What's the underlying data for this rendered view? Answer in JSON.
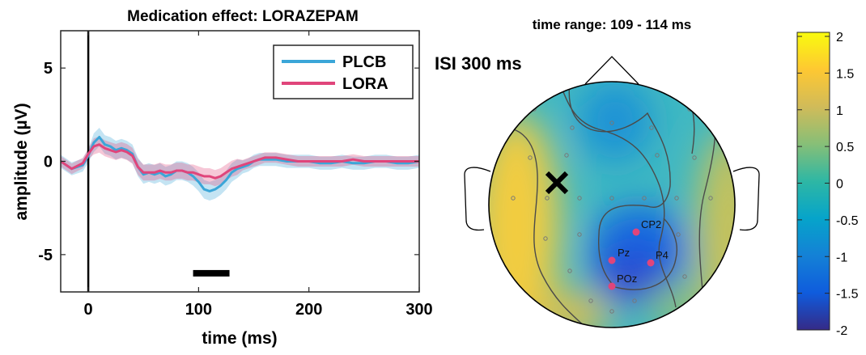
{
  "chart_data": [
    {
      "type": "line",
      "title": "Medication effect: LORAZEPAM",
      "xlabel": "time (ms)",
      "ylabel": "amplitude (µV)",
      "xlim": [
        -25,
        300
      ],
      "ylim": [
        -7,
        7
      ],
      "xticks": [
        0,
        100,
        200,
        300
      ],
      "yticks": [
        5,
        0,
        -5
      ],
      "xtick_labels": [
        "0",
        "100",
        "200",
        "300"
      ],
      "ytick_labels": [
        "5",
        "0",
        "-5"
      ],
      "legend_position": "top-right",
      "significance_bar": [
        95,
        128
      ],
      "x": [
        -25,
        -15,
        -5,
        0,
        5,
        10,
        15,
        20,
        25,
        30,
        35,
        40,
        45,
        50,
        55,
        60,
        65,
        70,
        75,
        80,
        85,
        90,
        95,
        100,
        105,
        110,
        115,
        120,
        125,
        130,
        135,
        140,
        145,
        150,
        155,
        160,
        170,
        180,
        190,
        200,
        210,
        220,
        230,
        240,
        250,
        260,
        270,
        280,
        290,
        300
      ],
      "series": [
        {
          "name": "PLCB",
          "color": "#3ba6d8",
          "values": [
            0.0,
            -0.4,
            -0.2,
            0.3,
            1.0,
            1.3,
            0.9,
            0.8,
            0.6,
            0.7,
            0.6,
            0.4,
            -0.3,
            -0.7,
            -0.6,
            -0.7,
            -0.6,
            -0.8,
            -0.7,
            -0.5,
            -0.5,
            -0.6,
            -0.8,
            -1.1,
            -1.5,
            -1.6,
            -1.5,
            -1.3,
            -1.0,
            -0.6,
            -0.4,
            -0.3,
            -0.2,
            0.0,
            0.1,
            0.1,
            0.1,
            0.0,
            0.0,
            0.0,
            -0.1,
            -0.1,
            0.0,
            -0.1,
            -0.1,
            0.0,
            0.0,
            -0.1,
            -0.1,
            0.0
          ]
        },
        {
          "name": "LORA",
          "color": "#e0457b",
          "values": [
            0.0,
            -0.4,
            -0.1,
            0.4,
            0.8,
            0.9,
            0.7,
            0.6,
            0.5,
            0.6,
            0.5,
            0.3,
            -0.3,
            -0.6,
            -0.6,
            -0.6,
            -0.5,
            -0.6,
            -0.6,
            -0.5,
            -0.5,
            -0.6,
            -0.6,
            -0.7,
            -0.8,
            -0.8,
            -0.9,
            -0.8,
            -0.6,
            -0.4,
            -0.3,
            -0.2,
            -0.1,
            0.0,
            0.1,
            0.2,
            0.2,
            0.1,
            0.0,
            0.0,
            0.0,
            0.0,
            0.0,
            0.1,
            0.0,
            0.0,
            0.0,
            0.0,
            0.0,
            0.0
          ]
        }
      ]
    },
    {
      "type": "heatmap",
      "subtitle": "time range: 109 - 114 ms",
      "panel_label": "ISI 300 ms",
      "colormap": "parula",
      "clim": [
        -2,
        2
      ],
      "colorbar_ticks": [
        "2",
        "1.5",
        "1",
        "0.5",
        "0",
        "-0.5",
        "-1",
        "-1.5",
        "-2"
      ],
      "marked_electrodes": [
        {
          "label": "CP2",
          "color": "#e0457b"
        },
        {
          "label": "Pz",
          "color": "#e0457b"
        },
        {
          "label": "P4",
          "color": "#e0457b"
        },
        {
          "label": "POz",
          "color": "#e0457b"
        }
      ],
      "extremum_marker": "x-icon"
    }
  ]
}
